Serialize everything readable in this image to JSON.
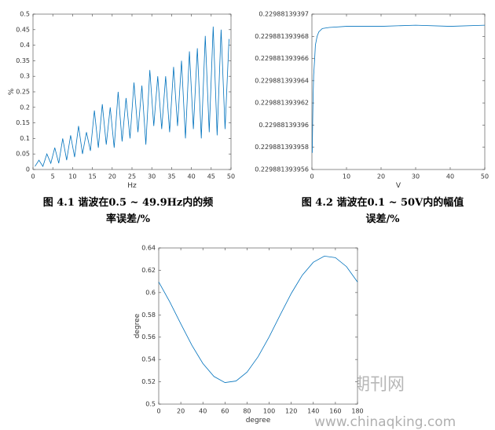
{
  "chart_data": [
    {
      "type": "line",
      "xlabel": "Hz",
      "ylabel": "%",
      "color": "#0072bd",
      "x": [
        0.5,
        1.5,
        2.5,
        3.5,
        4.5,
        5.5,
        6.5,
        7.5,
        8.5,
        9.5,
        10.5,
        11.5,
        12.5,
        13.5,
        14.5,
        15.5,
        16.5,
        17.5,
        18.5,
        19.5,
        20.5,
        21.5,
        22.5,
        23.5,
        24.5,
        25.5,
        26.5,
        27.5,
        28.5,
        29.5,
        30.5,
        31.5,
        32.5,
        33.5,
        34.5,
        35.5,
        36.5,
        37.5,
        38.5,
        39.5,
        40.5,
        41.5,
        42.5,
        43.5,
        44.5,
        45.5,
        46.5,
        47.5,
        48.5,
        49.5
      ],
      "values": [
        0.01,
        0.03,
        0.01,
        0.05,
        0.02,
        0.07,
        0.02,
        0.1,
        0.03,
        0.11,
        0.04,
        0.14,
        0.05,
        0.12,
        0.06,
        0.19,
        0.07,
        0.21,
        0.08,
        0.2,
        0.07,
        0.25,
        0.09,
        0.23,
        0.1,
        0.28,
        0.12,
        0.27,
        0.08,
        0.32,
        0.14,
        0.3,
        0.13,
        0.3,
        0.12,
        0.33,
        0.14,
        0.35,
        0.1,
        0.38,
        0.13,
        0.39,
        0.1,
        0.43,
        0.12,
        0.46,
        0.11,
        0.45,
        0.13,
        0.42
      ],
      "xlim": [
        0,
        50
      ],
      "xticks": [
        0,
        5,
        10,
        15,
        20,
        25,
        30,
        35,
        40,
        45,
        50
      ],
      "ylim": [
        0,
        0.5
      ],
      "yticks": [
        0,
        0.05,
        0.1,
        0.15,
        0.2,
        0.25,
        0.3,
        0.35,
        0.4,
        0.45,
        0.5
      ],
      "caption": [
        "图 4.1  谐波在0.5 ~ 49.9Hz内的频",
        "率误差/%"
      ]
    },
    {
      "type": "line",
      "xlabel": "V",
      "color": "#0072bd",
      "x": [
        0.1,
        0.2,
        0.3,
        0.5,
        0.8,
        1,
        1.5,
        2,
        3,
        5,
        10,
        20,
        30,
        40,
        50
      ],
      "values": [
        0.2298813939575,
        0.22988139396,
        0.229881393962,
        0.2298813939645,
        0.229881393966,
        0.2298813939672,
        0.229881393968,
        0.2298813939684,
        0.2298813939687,
        0.2298813939688,
        0.2298813939689,
        0.2298813939689,
        0.229881393969,
        0.2298813939689,
        0.229881393969
      ],
      "xlim": [
        0,
        50
      ],
      "xticks": [
        0,
        10,
        20,
        30,
        40,
        50
      ],
      "ylim": [
        0.229881393956,
        0.22988139397
      ],
      "yticks": [
        0.229881393956,
        0.229881393958,
        0.22988139396,
        0.229881393962,
        0.229881393964,
        0.229881393966,
        0.229881393968,
        0.22988139397
      ],
      "caption": [
        "图 4.2  谐波在0.1 ~ 50V内的幅值",
        "误差/%"
      ]
    },
    {
      "type": "line",
      "xlabel": "degree",
      "ylabel": "degree",
      "color": "#0072bd",
      "x": [
        0,
        10,
        20,
        30,
        40,
        50,
        60,
        70,
        80,
        90,
        100,
        110,
        120,
        130,
        140,
        150,
        160,
        170,
        180
      ],
      "values": [
        0.6095,
        0.5917,
        0.572,
        0.5528,
        0.5364,
        0.5248,
        0.5193,
        0.5207,
        0.5287,
        0.5425,
        0.5603,
        0.58,
        0.5992,
        0.6156,
        0.6272,
        0.6327,
        0.6313,
        0.6233,
        0.6095
      ],
      "xlim": [
        0,
        180
      ],
      "xticks": [
        0,
        20,
        40,
        60,
        80,
        100,
        120,
        140,
        160,
        180
      ],
      "ylim": [
        0.5,
        0.64
      ],
      "yticks": [
        0.5,
        0.52,
        0.54,
        0.56,
        0.58,
        0.6,
        0.62,
        0.64
      ]
    }
  ],
  "watermark": {
    "title": "中国期刊网",
    "url": "www.chinaqking.com"
  }
}
